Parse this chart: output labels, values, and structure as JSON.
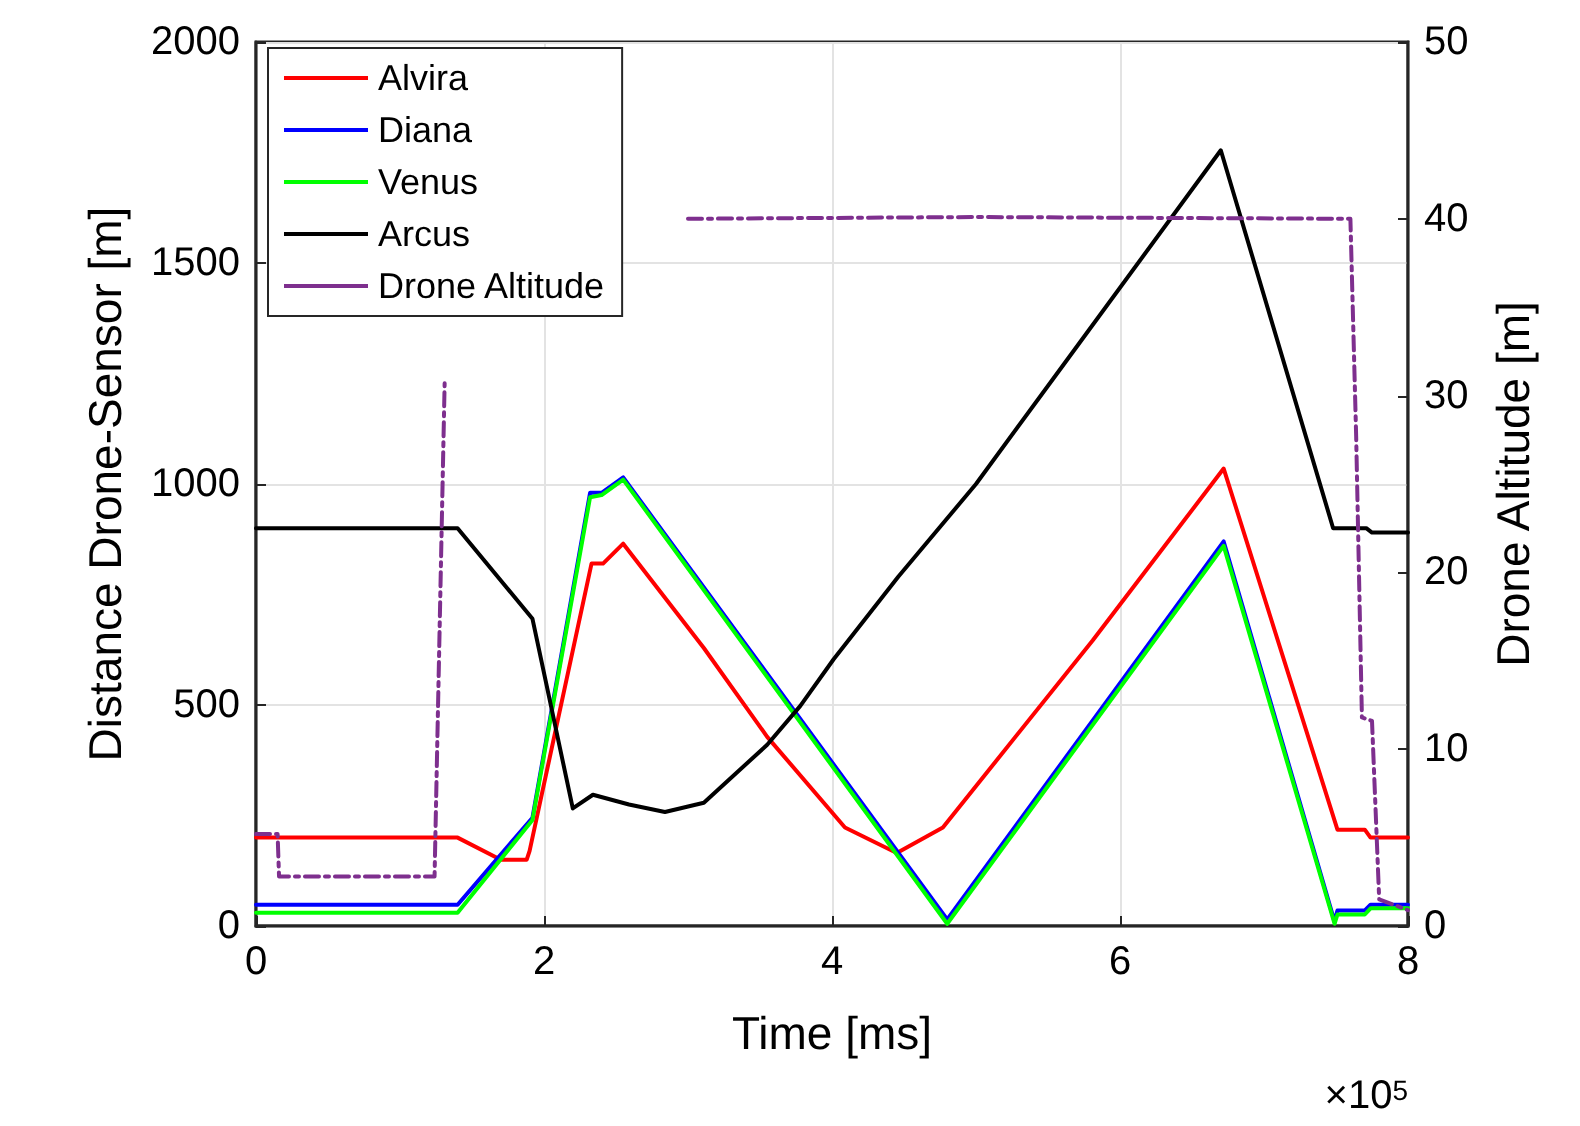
{
  "chart_data": {
    "type": "line",
    "xlabel": "Time [ms]",
    "ylabel": "Distance Drone-Sensor [m]",
    "y2label": "Drone Altitude [m]",
    "annotations": [
      "×10$^{5}$"
    ],
    "xlim": [
      0,
      8
    ],
    "xticks": [
      0,
      2,
      4,
      6,
      8
    ],
    "ylim": [
      0,
      2000
    ],
    "yticks": [
      0,
      500,
      1000,
      1500,
      2000
    ],
    "y2lim": [
      0,
      50
    ],
    "y2ticks": [
      0,
      10,
      20,
      30,
      40,
      50
    ],
    "grid": true,
    "legend": "top left",
    "marker": "none",
    "series": [
      {
        "name": "Alvira",
        "color": "#ff0000",
        "x": [
          0,
          1.4,
          1.7,
          1.88,
          1.9,
          2.33,
          2.41,
          2.55,
          3.11,
          3.55,
          4.09,
          4.45,
          4.77,
          5.81,
          6.72,
          7.51,
          7.7,
          7.74,
          8
        ],
        "values": [
          200,
          200,
          150,
          150,
          170,
          820,
          820,
          865,
          629,
          428,
          223,
          165,
          223,
          646,
          1035,
          218,
          218,
          200,
          200
        ]
      },
      {
        "name": "Diana",
        "color": "#0000ff",
        "x": [
          0,
          1.4,
          1.92,
          2.32,
          2.4,
          2.55,
          4.8,
          6.72,
          7.49,
          7.51,
          7.7,
          7.74,
          8
        ],
        "values": [
          48,
          48,
          245,
          980,
          980,
          1015,
          15,
          870,
          10,
          35,
          35,
          48,
          48
        ]
      },
      {
        "name": "Venus",
        "color": "#00ff00",
        "x": [
          0,
          1.4,
          1.92,
          2.32,
          2.4,
          2.55,
          4.8,
          6.72,
          7.49,
          7.51,
          7.7,
          7.74,
          8
        ],
        "values": [
          30,
          30,
          240,
          970,
          975,
          1010,
          5,
          860,
          5,
          26,
          26,
          40,
          40
        ]
      },
      {
        "name": "Arcus",
        "color": "#000000",
        "x": [
          0,
          1.4,
          1.92,
          2.2,
          2.34,
          2.59,
          2.84,
          3.11,
          3.55,
          3.78,
          4.01,
          4.46,
          5.0,
          5.61,
          6.7,
          7.48,
          7.71,
          7.75,
          8
        ],
        "values": [
          900,
          900,
          695,
          266,
          297,
          275,
          258,
          279,
          410,
          498,
          603,
          790,
          1000,
          1271,
          1755,
          900,
          900,
          890,
          890
        ]
      },
      {
        "name": "Drone Altitude",
        "color": "#7e2f8e",
        "axis": "y2",
        "line_style": "dashed",
        "x": [
          0,
          0.15,
          0.16,
          1.24,
          1.31,
          1.34,
          3,
          5,
          7.6,
          7.64,
          7.68,
          7.75,
          7.8,
          8
        ],
        "values": [
          5.2,
          5.2,
          2.8,
          2.8,
          30.7,
          null,
          40,
          40.1,
          40,
          27.7,
          11.8,
          11.6,
          1.5,
          0.9
        ]
      }
    ]
  }
}
